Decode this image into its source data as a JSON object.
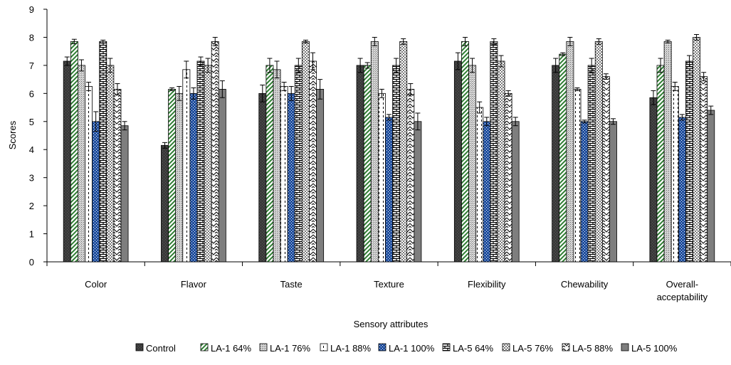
{
  "chart_data": {
    "type": "bar",
    "title": "",
    "xlabel": "Sensory attributes",
    "ylabel": "Scores",
    "ylim": [
      0,
      9
    ],
    "yticks": [
      0,
      1,
      2,
      3,
      4,
      5,
      6,
      7,
      8,
      9
    ],
    "grid": false,
    "legend_position": "bottom",
    "categories": [
      [
        "Color"
      ],
      [
        "Flavor"
      ],
      [
        "Taste"
      ],
      [
        "Texture"
      ],
      [
        "Flexibility"
      ],
      [
        "Chewability"
      ],
      [
        "Overall-",
        "acceptability"
      ]
    ],
    "series": [
      {
        "name": "Control",
        "color": "#333333",
        "pattern": "solid-dark",
        "values": [
          7.15,
          4.15,
          6.0,
          7.0,
          7.15,
          7.0,
          5.85
        ],
        "errors": [
          0.15,
          0.1,
          0.3,
          0.25,
          0.3,
          0.25,
          0.25
        ]
      },
      {
        "name": "LA-1 64%",
        "color": "#2e7d32",
        "pattern": "green-diag",
        "values": [
          7.85,
          6.15,
          7.0,
          7.0,
          7.85,
          7.4,
          7.0
        ],
        "errors": [
          0.08,
          0.05,
          0.25,
          0.1,
          0.15,
          0.05,
          0.25
        ]
      },
      {
        "name": "LA-1 76%",
        "color": "#808080",
        "pattern": "dots-gray",
        "values": [
          7.0,
          6.0,
          6.85,
          7.85,
          7.0,
          7.85,
          7.85
        ],
        "errors": [
          0.2,
          0.25,
          0.3,
          0.15,
          0.25,
          0.15,
          0.05
        ]
      },
      {
        "name": "LA-1 88%",
        "color": "#ffffff",
        "pattern": "vlines",
        "values": [
          6.25,
          6.85,
          6.25,
          6.0,
          5.5,
          6.15,
          6.25
        ],
        "errors": [
          0.15,
          0.3,
          0.15,
          0.15,
          0.2,
          0.05,
          0.15
        ]
      },
      {
        "name": "LA-1 100%",
        "color": "#1f4e9e",
        "pattern": "blue-dots",
        "values": [
          5.0,
          6.0,
          6.0,
          5.15,
          5.0,
          5.0,
          5.15
        ],
        "errors": [
          0.35,
          0.2,
          0.25,
          0.1,
          0.15,
          0.05,
          0.1
        ]
      },
      {
        "name": "LA-5 64%",
        "color": "#ffffff",
        "pattern": "bricks",
        "values": [
          7.85,
          7.15,
          7.0,
          7.0,
          7.85,
          7.0,
          7.15
        ],
        "errors": [
          0.05,
          0.15,
          0.25,
          0.25,
          0.1,
          0.25,
          0.2
        ]
      },
      {
        "name": "LA-5 76%",
        "color": "#a0a0a0",
        "pattern": "checker",
        "values": [
          7.0,
          7.0,
          7.85,
          7.85,
          7.15,
          7.85,
          8.0
        ],
        "errors": [
          0.25,
          0.25,
          0.05,
          0.1,
          0.2,
          0.1,
          0.1
        ]
      },
      {
        "name": "LA-5 88%",
        "color": "#ffffff",
        "pattern": "zigzag",
        "values": [
          6.15,
          7.85,
          7.15,
          6.15,
          6.0,
          6.6,
          6.6
        ],
        "errors": [
          0.2,
          0.15,
          0.3,
          0.2,
          0.1,
          0.1,
          0.15
        ]
      },
      {
        "name": "LA-5 100%",
        "color": "#808080",
        "pattern": "solid-gray",
        "values": [
          4.85,
          6.15,
          6.15,
          5.0,
          5.0,
          5.0,
          5.4
        ],
        "errors": [
          0.15,
          0.3,
          0.35,
          0.3,
          0.15,
          0.1,
          0.15
        ]
      }
    ]
  }
}
